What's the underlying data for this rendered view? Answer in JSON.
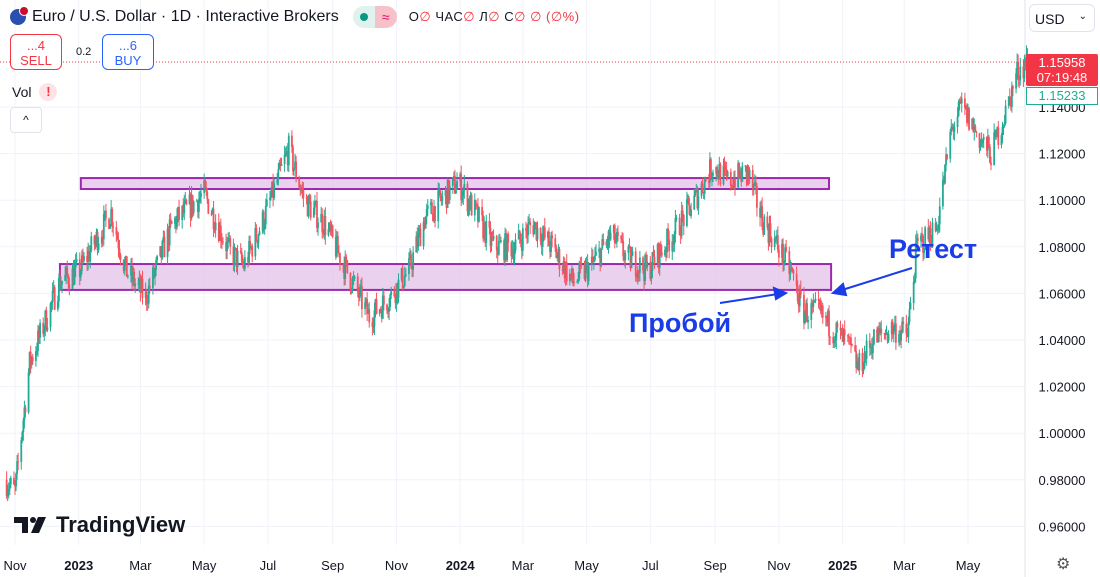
{
  "header": {
    "symbol_title": "Euro / U.S. Dollar · 1D · Interactive Brokers",
    "ohlc": {
      "open_label": "O",
      "open": "∅",
      "high_label": "ЧАС",
      "high": "∅",
      "low_label": "Л",
      "low": "∅",
      "close_label": "С",
      "close": "∅",
      "change": "∅ (∅%)"
    },
    "status_icon": "market-open-dot",
    "data_icon": "delayed-data-wave"
  },
  "trade": {
    "sell_price": "...4",
    "sell_label": "SELL",
    "spread": "0.2",
    "buy_price": "...6",
    "buy_label": "BUY"
  },
  "indicators": {
    "vol_label": "Vol",
    "vol_warning": "!",
    "collapse": "^"
  },
  "currency_select": {
    "value": "USD"
  },
  "price_labels": {
    "last": "1.15958",
    "countdown": "07:19:48",
    "prev": "1.15233"
  },
  "logo": "TradingView",
  "annotations": {
    "breakout": "Пробой",
    "retest": "Ретест"
  },
  "colors": {
    "up": "#22ab94",
    "down": "#f7525f",
    "zone_fill": "#e1bee7",
    "zone_border": "#9c27b0",
    "annotation": "#1a3de8",
    "last_price": "#f23645"
  },
  "chart_data": {
    "type": "candlestick",
    "symbol": "EURUSD",
    "interval": "1D",
    "ylim": [
      0.95,
      1.165
    ],
    "y_ticks": [
      "1.14000",
      "1.12000",
      "1.10000",
      "1.08000",
      "1.06000",
      "1.04000",
      "1.02000",
      "1.00000",
      "0.98000",
      "0.96000"
    ],
    "x_ticks": [
      {
        "date": "2022-11-01",
        "label": "Nov",
        "bold": false
      },
      {
        "date": "2023-01-01",
        "label": "2023",
        "bold": true
      },
      {
        "date": "2023-03-01",
        "label": "Mar",
        "bold": false
      },
      {
        "date": "2023-05-01",
        "label": "May",
        "bold": false
      },
      {
        "date": "2023-07-01",
        "label": "Jul",
        "bold": false
      },
      {
        "date": "2023-09-01",
        "label": "Sep",
        "bold": false
      },
      {
        "date": "2023-11-01",
        "label": "Nov",
        "bold": false
      },
      {
        "date": "2024-01-01",
        "label": "2024",
        "bold": true
      },
      {
        "date": "2024-03-01",
        "label": "Mar",
        "bold": false
      },
      {
        "date": "2024-05-01",
        "label": "May",
        "bold": false
      },
      {
        "date": "2024-07-01",
        "label": "Jul",
        "bold": false
      },
      {
        "date": "2024-09-01",
        "label": "Sep",
        "bold": false
      },
      {
        "date": "2024-11-01",
        "label": "Nov",
        "bold": false
      },
      {
        "date": "2025-01-01",
        "label": "2025",
        "bold": true
      },
      {
        "date": "2025-03-01",
        "label": "Mar",
        "bold": false
      },
      {
        "date": "2025-05-01",
        "label": "May",
        "bold": false
      }
    ],
    "grid": true,
    "approx_closes": [
      [
        "2022-10-22",
        0.98
      ],
      [
        "2022-11-01",
        0.975
      ],
      [
        "2022-11-15",
        1.03
      ],
      [
        "2022-12-14",
        1.065
      ],
      [
        "2023-01-02",
        1.07
      ],
      [
        "2023-02-01",
        1.095
      ],
      [
        "2023-02-15",
        1.07
      ],
      [
        "2023-03-06",
        1.058
      ],
      [
        "2023-04-01",
        1.09
      ],
      [
        "2023-05-01",
        1.103
      ],
      [
        "2023-05-25",
        1.078
      ],
      [
        "2023-06-08",
        1.072
      ],
      [
        "2023-06-27",
        1.092
      ],
      [
        "2023-07-21",
        1.122
      ],
      [
        "2023-08-05",
        1.1
      ],
      [
        "2023-08-24",
        1.09
      ],
      [
        "2023-09-12",
        1.072
      ],
      [
        "2023-10-06",
        1.05
      ],
      [
        "2023-10-25",
        1.058
      ],
      [
        "2023-11-13",
        1.07
      ],
      [
        "2023-11-28",
        1.092
      ],
      [
        "2023-12-30",
        1.108
      ],
      [
        "2024-01-15",
        1.095
      ],
      [
        "2024-02-02",
        1.08
      ],
      [
        "2024-02-22",
        1.08
      ],
      [
        "2024-03-10",
        1.09
      ],
      [
        "2024-03-29",
        1.08
      ],
      [
        "2024-04-18",
        1.065
      ],
      [
        "2024-05-06",
        1.072
      ],
      [
        "2024-05-25",
        1.085
      ],
      [
        "2024-06-09",
        1.075
      ],
      [
        "2024-06-28",
        1.07
      ],
      [
        "2024-07-22",
        1.085
      ],
      [
        "2024-08-10",
        1.098
      ],
      [
        "2024-08-30",
        1.115
      ],
      [
        "2024-09-13",
        1.108
      ],
      [
        "2024-10-02",
        1.112
      ],
      [
        "2024-10-16",
        1.092
      ],
      [
        "2024-10-31",
        1.08
      ],
      [
        "2024-11-14",
        1.068
      ],
      [
        "2024-11-24",
        1.052
      ],
      [
        "2024-12-08",
        1.052
      ],
      [
        "2024-12-22",
        1.045
      ],
      [
        "2025-01-06",
        1.038
      ],
      [
        "2025-01-16",
        1.028
      ],
      [
        "2025-01-30",
        1.04
      ],
      [
        "2025-02-18",
        1.045
      ],
      [
        "2025-03-04",
        1.042
      ],
      [
        "2025-03-13",
        1.08
      ],
      [
        "2025-04-01",
        1.088
      ],
      [
        "2025-04-15",
        1.13
      ],
      [
        "2025-04-25",
        1.14
      ],
      [
        "2025-05-14",
        1.125
      ],
      [
        "2025-05-23",
        1.12
      ],
      [
        "2025-06-08",
        1.14
      ],
      [
        "2025-06-17",
        1.155
      ],
      [
        "2025-06-27",
        1.1596
      ]
    ],
    "zones": [
      {
        "from": "2023-01-03",
        "to": "2024-12-19",
        "low": 1.1048,
        "high": 1.1095
      },
      {
        "from": "2022-12-14",
        "to": "2024-12-21",
        "low": 1.0615,
        "high": 1.0726
      }
    ],
    "last_price": 1.15958
  }
}
